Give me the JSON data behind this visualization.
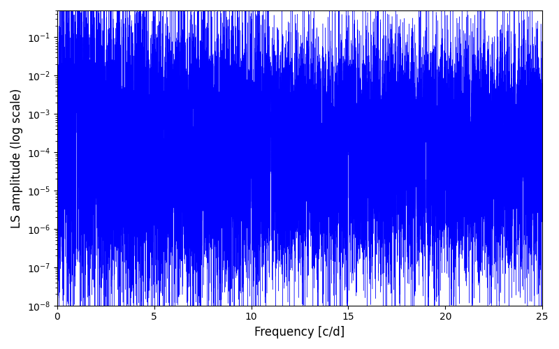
{
  "xlabel": "Frequency [c/d]",
  "ylabel": "LS amplitude (log scale)",
  "line_color": "blue",
  "xlim": [
    0,
    25
  ],
  "ylim": [
    1e-08,
    0.5
  ],
  "yscale": "log",
  "figsize": [
    8.0,
    5.0
  ],
  "dpi": 100,
  "seed": 42,
  "n_points": 20000,
  "background_color": "#ffffff",
  "linewidth": 0.3
}
